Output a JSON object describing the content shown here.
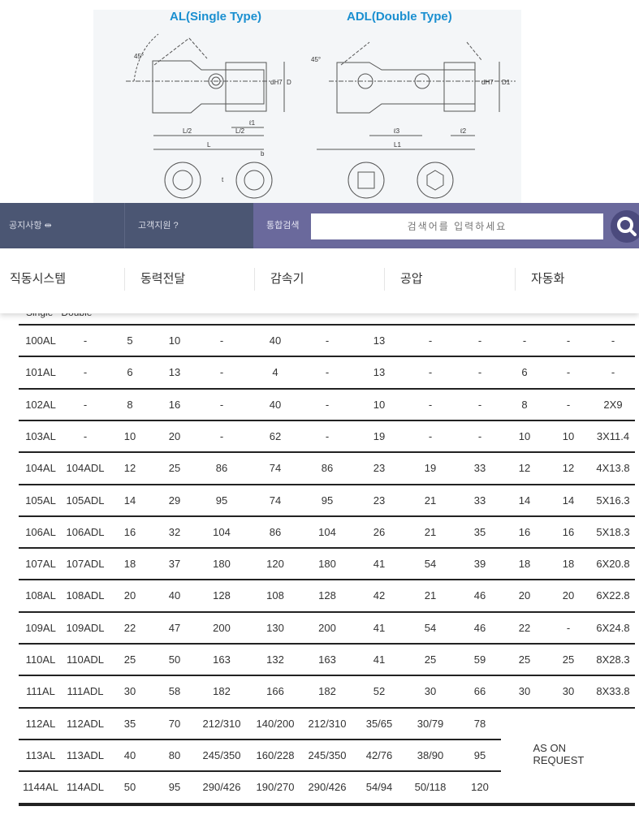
{
  "diagram": {
    "single_title": "AL(Single Type)",
    "double_title": "ADL(Double Type)",
    "labels": {
      "angle": "45°",
      "L_half": "L/2",
      "L": "L",
      "l1": "ℓ1",
      "dH7": "dH7",
      "D": "D",
      "l3": "ℓ3",
      "l2": "ℓ2",
      "L1": "L1",
      "D1": "D1",
      "b": "b",
      "t": "t"
    }
  },
  "nav": {
    "notice": "공지사항",
    "notice_icon": "share-icon",
    "support": "고객지원",
    "support_icon": "question-icon",
    "integrated_search": "통합검색",
    "search_placeholder": "검색어를 입력하세요",
    "search_icon": "search-icon"
  },
  "menu": [
    "직동시스템",
    "동력전달",
    "감속기",
    "공압",
    "자동화"
  ],
  "table": {
    "header": [
      "Single",
      "Double"
    ],
    "rows": [
      [
        "100AL",
        "-",
        "5",
        "10",
        "-",
        "40",
        "-",
        "13",
        "-",
        "-",
        "-",
        "-",
        "-"
      ],
      [
        "101AL",
        "-",
        "6",
        "13",
        "-",
        "4",
        "-",
        "13",
        "-",
        "-",
        "6",
        "-",
        "-"
      ],
      [
        "102AL",
        "-",
        "8",
        "16",
        "-",
        "40",
        "-",
        "10",
        "-",
        "-",
        "8",
        "-",
        "2X9"
      ],
      [
        "103AL",
        "-",
        "10",
        "20",
        "-",
        "62",
        "-",
        "19",
        "-",
        "-",
        "10",
        "10",
        "3X11.4"
      ],
      [
        "104AL",
        "104ADL",
        "12",
        "25",
        "86",
        "74",
        "86",
        "23",
        "19",
        "33",
        "12",
        "12",
        "4X13.8"
      ],
      [
        "105AL",
        "105ADL",
        "14",
        "29",
        "95",
        "74",
        "95",
        "23",
        "21",
        "33",
        "14",
        "14",
        "5X16.3"
      ],
      [
        "106AL",
        "106ADL",
        "16",
        "32",
        "104",
        "86",
        "104",
        "26",
        "21",
        "35",
        "16",
        "16",
        "5X18.3"
      ],
      [
        "107AL",
        "107ADL",
        "18",
        "37",
        "180",
        "120",
        "180",
        "41",
        "54",
        "39",
        "18",
        "18",
        "6X20.8"
      ],
      [
        "108AL",
        "108ADL",
        "20",
        "40",
        "128",
        "108",
        "128",
        "42",
        "21",
        "46",
        "20",
        "20",
        "6X22.8"
      ],
      [
        "109AL",
        "109ADL",
        "22",
        "47",
        "200",
        "130",
        "200",
        "41",
        "54",
        "46",
        "22",
        "-",
        "6X24.8"
      ],
      [
        "110AL",
        "110ADL",
        "25",
        "50",
        "163",
        "132",
        "163",
        "41",
        "25",
        "59",
        "25",
        "25",
        "8X28.3"
      ],
      [
        "111AL",
        "111ADL",
        "30",
        "58",
        "182",
        "166",
        "182",
        "52",
        "30",
        "66",
        "30",
        "30",
        "8X33.8"
      ],
      [
        "112AL",
        "112ADL",
        "35",
        "70",
        "212/310",
        "140/200",
        "212/310",
        "35/65",
        "30/79",
        "78"
      ],
      [
        "113AL",
        "113ADL",
        "40",
        "80",
        "245/350",
        "160/228",
        "245/350",
        "42/76",
        "38/90",
        "95"
      ],
      [
        "1144AL",
        "114ADL",
        "50",
        "95",
        "290/426",
        "190/270",
        "290/426",
        "54/94",
        "50/118",
        "120"
      ]
    ],
    "merged_note": "AS ON REQUEST"
  }
}
